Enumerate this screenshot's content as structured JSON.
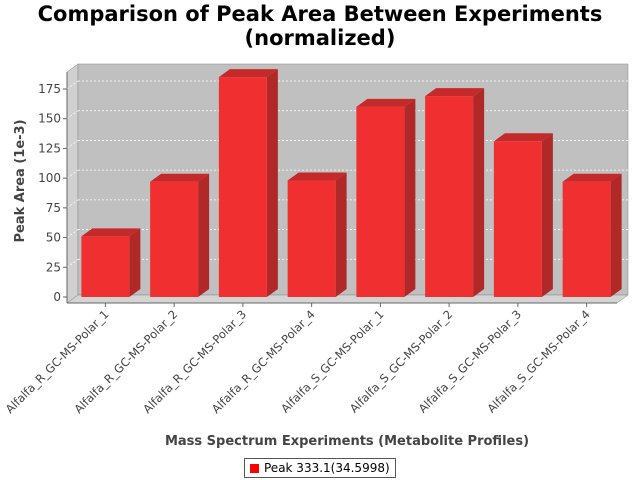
{
  "chart_data": {
    "type": "bar",
    "title_line1": "Comparison of Peak Area Between Experiments",
    "title_line2": "(normalized)",
    "xlabel": "Mass Spectrum Experiments (Metabolite Profiles)",
    "ylabel": "Peak Area (1e-3)",
    "ylim": [
      0,
      190
    ],
    "yticks": [
      0,
      25,
      50,
      75,
      100,
      125,
      150,
      175
    ],
    "grid": true,
    "legend_position": "bottom",
    "categories": [
      "Alfalfa_R_GC-MS-Polar_1",
      "Alfalfa_R_GC-MS-Polar_2",
      "Alfalfa_R_GC-MS-Polar_3",
      "Alfalfa_R_GC-MS-Polar_4",
      "Alfalfa_S_GC-MS-Polar_1",
      "Alfalfa_S_GC-MS-Polar_2",
      "Alfalfa_S_GC-MS-Polar_3",
      "Alfalfa_S_GC-MS-Polar_4"
    ],
    "series": [
      {
        "name": "Peak 333.1(34.5998)",
        "values": [
          51,
          97,
          185,
          98,
          160,
          169,
          131,
          97
        ]
      }
    ],
    "colors": {
      "bar_front": "#f03030",
      "bar_top": "#c42a2a",
      "bar_side": "#b02828",
      "plot_bg": "#c0c0c0",
      "wall": "#d0d0d0",
      "floor": "#d4d4d4",
      "grid": "#ffffff",
      "legend_swatch": "#ff0000"
    }
  }
}
